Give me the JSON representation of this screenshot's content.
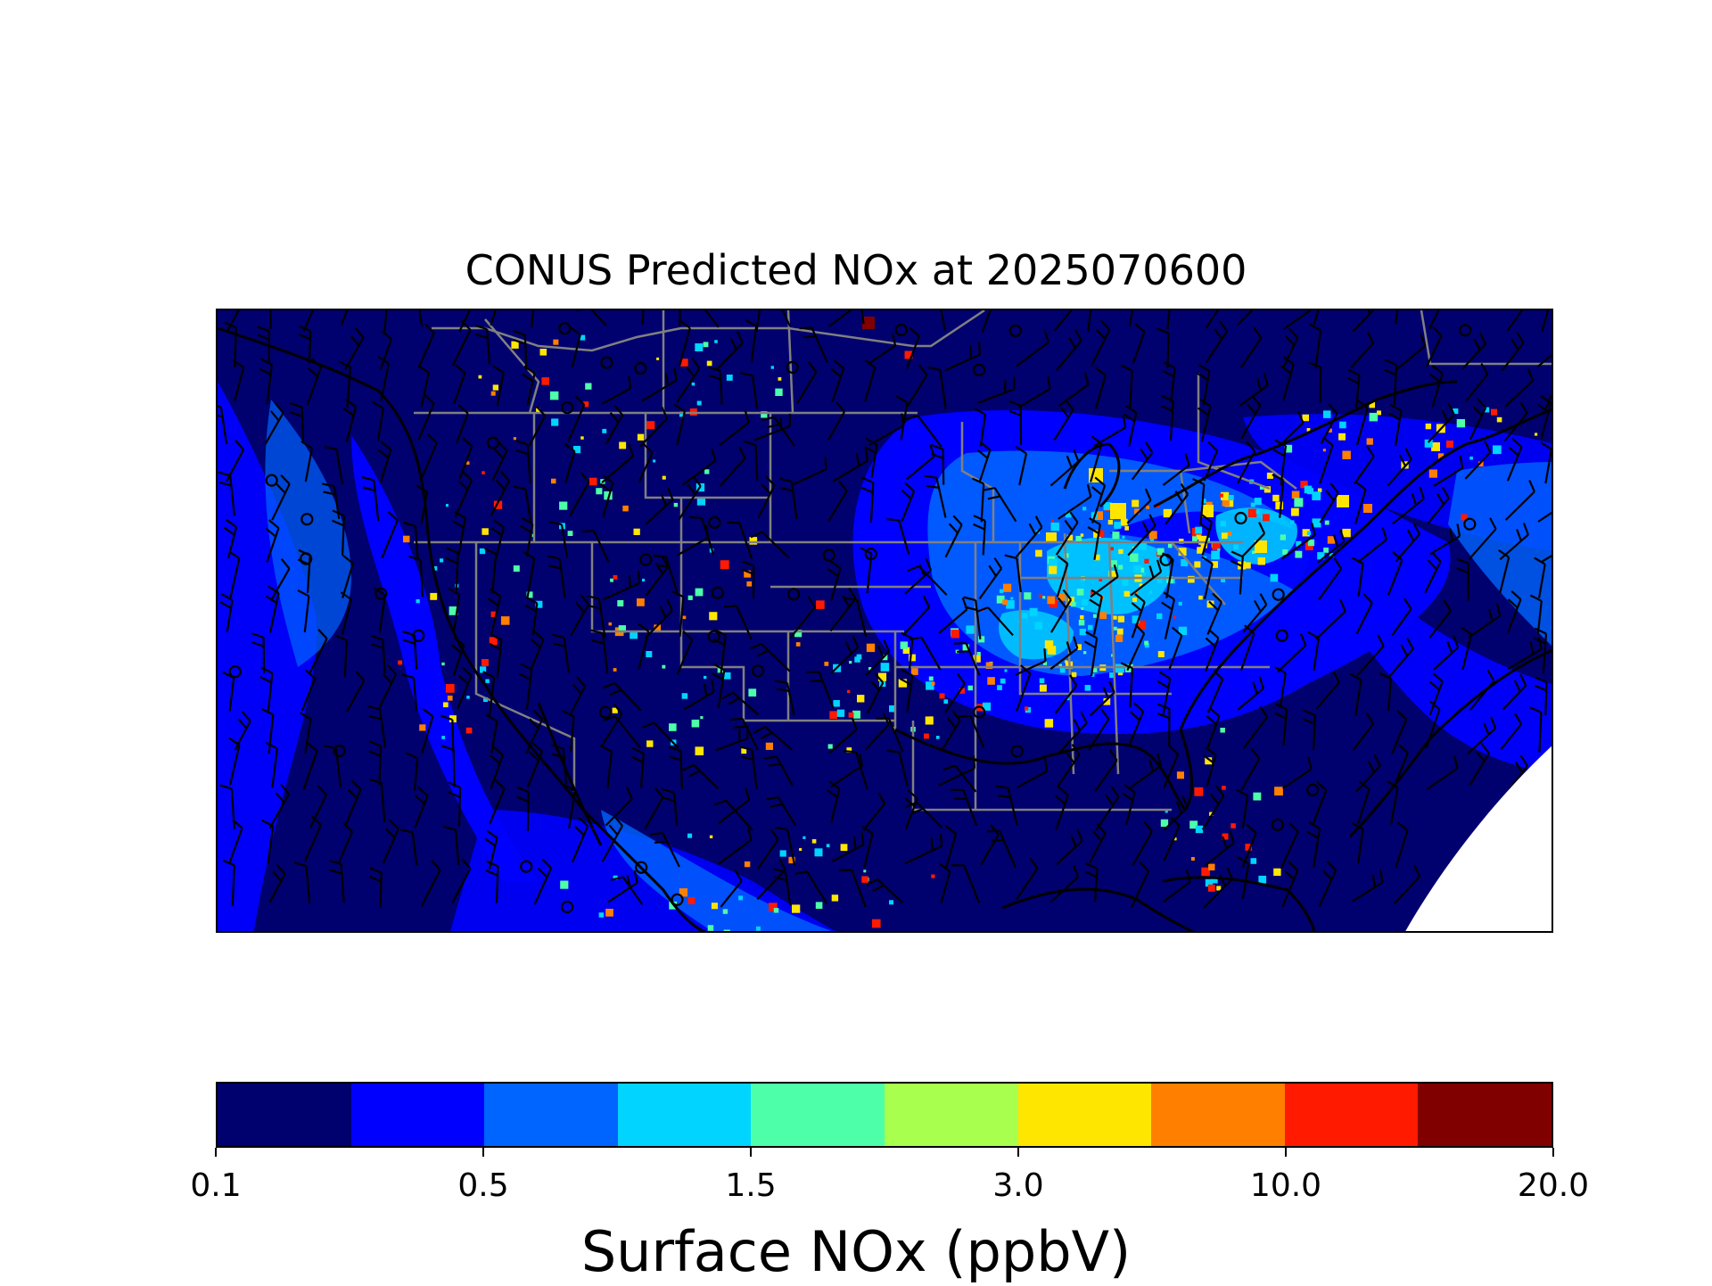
{
  "title": "CONUS Predicted NOx at 2025070600",
  "colorbar": {
    "label": "Surface NOx (ppbV)",
    "colors": [
      "#00006e",
      "#0000ff",
      "#0064ff",
      "#00d4ff",
      "#4dffa8",
      "#a8ff4d",
      "#ffe600",
      "#ff7f00",
      "#ff1a00",
      "#800000"
    ],
    "tick_labels": [
      "0.1",
      "0.5",
      "1.5",
      "3.0",
      "10.0",
      "20.0"
    ]
  },
  "map": {
    "field_colors": {
      "background": "#00006e",
      "low": "#0000ff",
      "mid": "#0064ff",
      "cyan": "#00d4ff",
      "green": "#4dffa8",
      "yellow": "#ffe600",
      "orange": "#ff7f00",
      "red": "#ff1a00",
      "darkred": "#800000",
      "missing": "#ffffff"
    },
    "state_border_color": "#808080",
    "coastline_color": "#000000",
    "wind_barb_color": "#000000"
  }
}
